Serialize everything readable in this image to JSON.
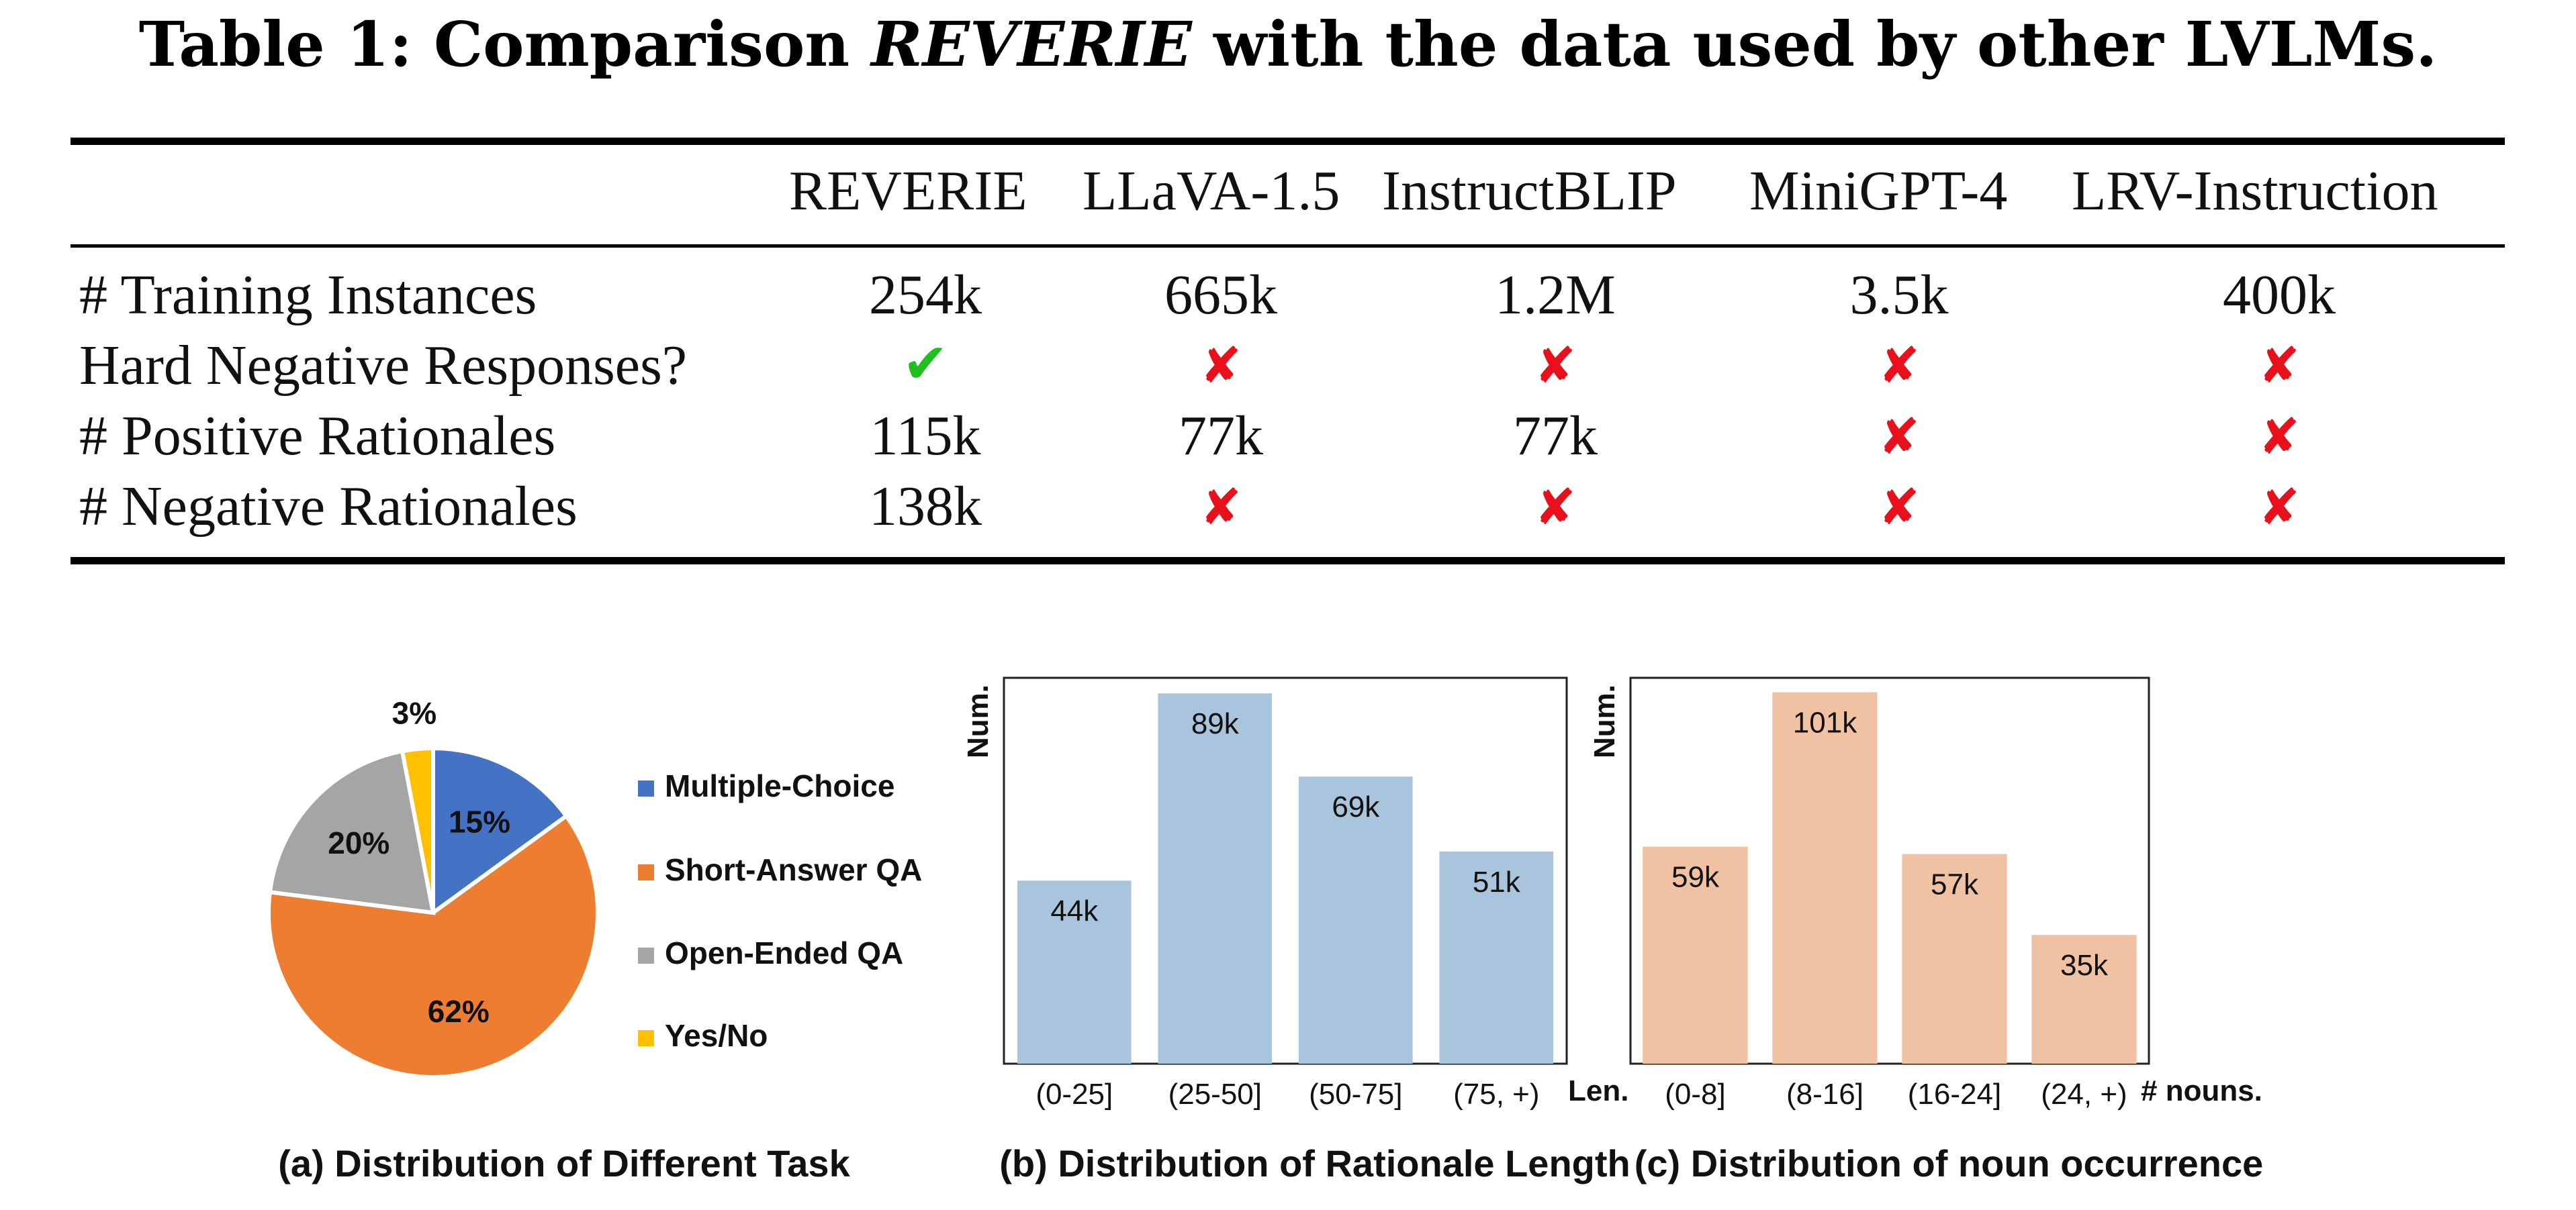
{
  "caption": {
    "prefix": "Table 1: Comparison ",
    "name": "REVERIE",
    "suffix": " with the data used by other LVLMs."
  },
  "table": {
    "columns": [
      "REVERIE",
      "LLaVA-1.5",
      "InstructBLIP",
      "MiniGPT-4",
      "LRV-Instruction"
    ],
    "rows": [
      {
        "label": "# Training Instances",
        "cells": [
          "254k",
          "665k",
          "1.2M",
          "3.5k",
          "400k"
        ]
      },
      {
        "label": "Hard Negative Responses?",
        "cells": [
          "✔",
          "✘",
          "✘",
          "✘",
          "✘"
        ]
      },
      {
        "label": "# Positive Rationales",
        "cells": [
          "115k",
          "77k",
          "77k",
          "✘",
          "✘"
        ]
      },
      {
        "label": "# Negative Rationales",
        "cells": [
          "138k",
          "✘",
          "✘",
          "✘",
          "✘"
        ]
      }
    ]
  },
  "chart_data": [
    {
      "type": "pie",
      "caption": "(a) Distribution of Different Task",
      "slices": [
        {
          "label": "Multiple-Choice",
          "value": 15,
          "display": "15%",
          "color": "#4472c4"
        },
        {
          "label": "Short-Answer QA",
          "value": 62,
          "display": "62%",
          "color": "#ed7d31"
        },
        {
          "label": "Open-Ended QA",
          "value": 20,
          "display": "20%",
          "color": "#a5a5a5"
        },
        {
          "label": "Yes/No",
          "value": 3,
          "display": "3%",
          "color": "#ffc000"
        }
      ]
    },
    {
      "type": "bar",
      "caption": "(b) Distribution of Rationale Length",
      "ylabel": "Num.",
      "xlabel": "Len.",
      "categories": [
        "(0-25]",
        "(25-50]",
        "(50-75]",
        "(75, +)"
      ],
      "values": [
        44,
        89,
        69,
        51
      ],
      "data_labels": [
        "44k",
        "89k",
        "69k",
        "51k"
      ],
      "color": "#a9c5dd"
    },
    {
      "type": "bar",
      "caption": "(c) Distribution of noun occurrence",
      "ylabel": "Num.",
      "xlabel": "# nouns.",
      "categories": [
        "(0-8]",
        "(8-16]",
        "(16-24]",
        "(24, +)"
      ],
      "values": [
        59,
        101,
        57,
        35
      ],
      "data_labels": [
        "59k",
        "101k",
        "57k",
        "35k"
      ],
      "color": "#f0c2a3"
    }
  ]
}
